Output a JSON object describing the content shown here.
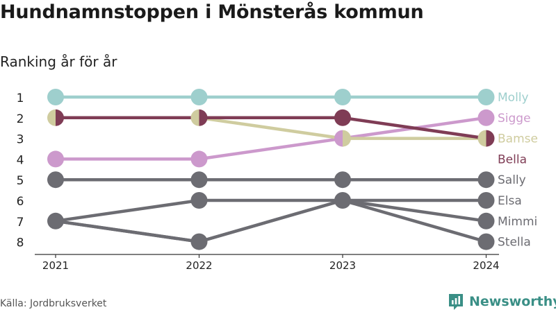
{
  "title": "Hundnamnstoppen i Mönsterås kommun",
  "subtitle": "Ranking år för år",
  "source": "Källa: Jordbruksverket",
  "brand": {
    "name": "Newsworthy",
    "icon": "newsworthy-logo-icon"
  },
  "chart_data": {
    "type": "line",
    "chart_kind": "bump",
    "x": [
      "2021",
      "2022",
      "2023",
      "2024"
    ],
    "y_ticks": [
      "1",
      "2",
      "3",
      "4",
      "5",
      "6",
      "7",
      "8"
    ],
    "ylim": [
      1,
      8
    ],
    "y_inverted": true,
    "grid": false,
    "labels_position": "right-end",
    "series": [
      {
        "name": "Molly",
        "color": "#9ecfcd",
        "values": [
          1,
          1,
          1,
          1
        ]
      },
      {
        "name": "Sigge",
        "color": "#cc99cc",
        "values": [
          4,
          4,
          3,
          2
        ]
      },
      {
        "name": "Bamse",
        "color": "#cfcc9f",
        "values": [
          2,
          2,
          3,
          3
        ]
      },
      {
        "name": "Bella",
        "color": "#7f3c55",
        "values": [
          2,
          2,
          2,
          3
        ]
      },
      {
        "name": "Sally",
        "color": "#6c6c72",
        "values": [
          5,
          5,
          5,
          5
        ]
      },
      {
        "name": "Elsa",
        "color": "#6c6c72",
        "values": [
          7,
          6,
          6,
          6
        ]
      },
      {
        "name": "Mimmi",
        "color": "#6c6c72",
        "values": [
          7,
          8,
          6,
          7
        ]
      },
      {
        "name": "Stella",
        "color": "#6c6c72",
        "values": [
          7,
          8,
          6,
          8
        ]
      }
    ]
  }
}
